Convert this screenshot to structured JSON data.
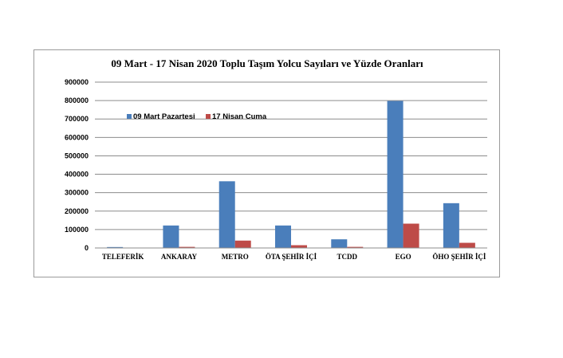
{
  "chart_data": {
    "type": "bar",
    "title": "09 Mart - 17 Nisan 2020  Toplu Taşım Yolcu Sayıları ve Yüzde Oranları",
    "categories": [
      "TELEFERİK",
      "ANKARAY",
      "METRO",
      "ÖTA ŞEHİR İÇİ",
      "TCDD",
      "EGO",
      "ÖHO ŞEHİR İÇİ"
    ],
    "series": [
      {
        "name": "09 Mart Pazartesi",
        "color": "#4a7ebb",
        "values": [
          5000,
          122000,
          362000,
          122000,
          47000,
          798000,
          243000
        ]
      },
      {
        "name": "17 Nisan Cuma",
        "color": "#be4b48",
        "values": [
          500,
          6000,
          40000,
          15000,
          6000,
          132000,
          28000
        ]
      }
    ],
    "ylim": [
      0,
      900000
    ],
    "yticks": [
      0,
      100000,
      200000,
      300000,
      400000,
      500000,
      600000,
      700000,
      800000,
      900000
    ],
    "ytick_labels": [
      "0",
      "100000",
      "200000",
      "300000",
      "400000",
      "500000",
      "600000",
      "700000",
      "800000",
      "900000"
    ],
    "xlabel": "",
    "ylabel": "",
    "grid": true,
    "legend": "top-left"
  }
}
